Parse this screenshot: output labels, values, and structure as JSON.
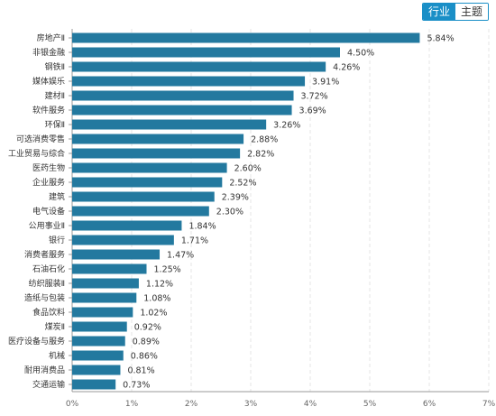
{
  "toggle": {
    "industry_label": "行业",
    "theme_label": "主题"
  },
  "colors": {
    "bar": "#23799f",
    "accent": "#1a8fc7"
  },
  "chart_data": {
    "type": "bar",
    "orientation": "horizontal",
    "categories": [
      "房地产Ⅱ",
      "非银金融",
      "钢铁Ⅱ",
      "媒体娱乐",
      "建材Ⅱ",
      "软件服务",
      "环保Ⅱ",
      "可选消费零售",
      "工业贸易与综合",
      "医药生物",
      "企业服务",
      "建筑",
      "电气设备",
      "公用事业Ⅱ",
      "银行",
      "消费者服务",
      "石油石化",
      "纺织服装Ⅱ",
      "造纸与包装",
      "食品饮料",
      "煤炭Ⅱ",
      "医疗设备与服务",
      "机械",
      "耐用消费品",
      "交通运输"
    ],
    "values": [
      5.84,
      4.5,
      4.26,
      3.91,
      3.72,
      3.69,
      3.26,
      2.88,
      2.82,
      2.6,
      2.52,
      2.39,
      2.3,
      1.84,
      1.71,
      1.47,
      1.25,
      1.12,
      1.08,
      1.02,
      0.92,
      0.89,
      0.86,
      0.81,
      0.73
    ],
    "value_labels": [
      "5.84%",
      "4.50%",
      "4.26%",
      "3.91%",
      "3.72%",
      "3.69%",
      "3.26%",
      "2.88%",
      "2.82%",
      "2.60%",
      "2.52%",
      "2.39%",
      "2.30%",
      "1.84%",
      "1.71%",
      "1.47%",
      "1.25%",
      "1.12%",
      "1.08%",
      "1.02%",
      "0.92%",
      "0.89%",
      "0.86%",
      "0.81%",
      "0.73%"
    ],
    "xticks": [
      "0%",
      "1%",
      "2%",
      "3%",
      "4%",
      "5%",
      "6%",
      "7%"
    ],
    "xlim": [
      0,
      7
    ],
    "title": "",
    "xlabel": "",
    "ylabel": "",
    "grid": true
  }
}
